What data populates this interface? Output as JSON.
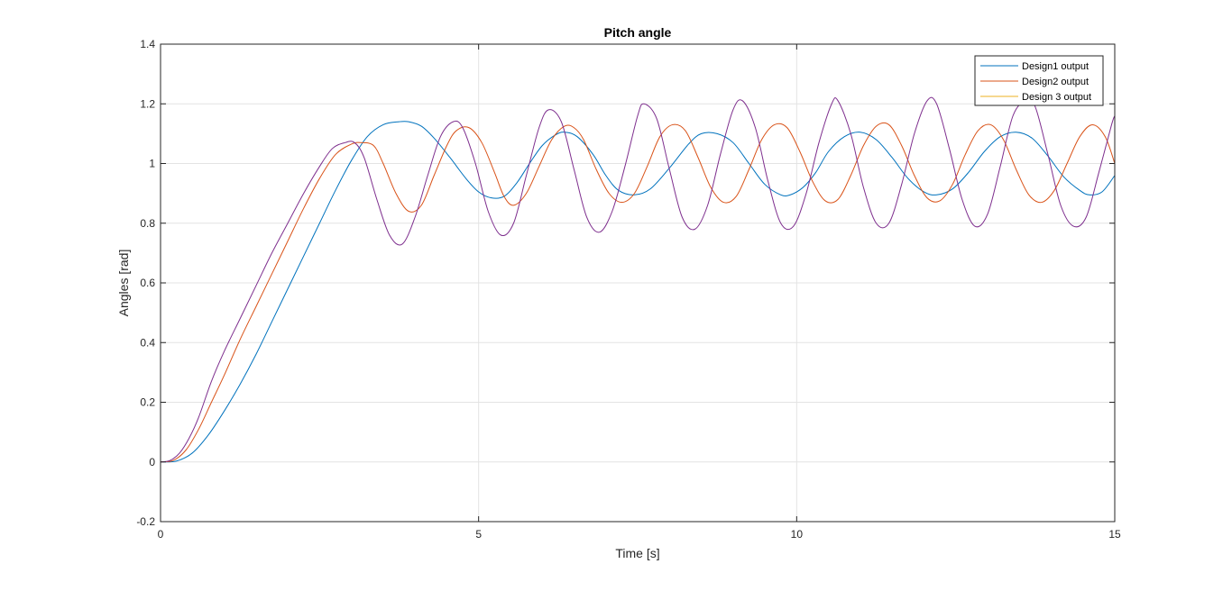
{
  "chart_data": {
    "type": "line",
    "title": "Pitch angle",
    "xlabel": "Time [s]",
    "ylabel": "Angles [rad]",
    "xlim": [
      0,
      15
    ],
    "ylim": [
      -0.2,
      1.4
    ],
    "xticks": [
      0,
      5,
      10,
      15
    ],
    "yticks": [
      -0.2,
      0,
      0.2,
      0.4,
      0.6,
      0.8,
      1,
      1.2,
      1.4
    ],
    "xtick_labels": [
      "0",
      "5",
      "10",
      "15"
    ],
    "ytick_labels": [
      "-0.2",
      "0",
      "0.2",
      "0.4",
      "0.6",
      "0.8",
      "1",
      "1.2",
      "1.4"
    ],
    "grid": true,
    "legend_position": "top-right",
    "series": [
      {
        "name": "Design1 output",
        "color": "#0072BD",
        "x": [
          0,
          0.25,
          0.5,
          0.75,
          1.0,
          1.25,
          1.5,
          1.75,
          2.0,
          2.25,
          2.5,
          2.75,
          3.0,
          3.25,
          3.5,
          3.75,
          3.9,
          4.1,
          4.3,
          4.55,
          4.8,
          5.0,
          5.2,
          5.4,
          5.6,
          5.8,
          6.0,
          6.2,
          6.35,
          6.55,
          6.8,
          7.0,
          7.2,
          7.45,
          7.7,
          8.0,
          8.3,
          8.5,
          8.75,
          9.0,
          9.25,
          9.5,
          9.75,
          9.9,
          10.1,
          10.3,
          10.5,
          10.75,
          11.0,
          11.25,
          11.5,
          11.75,
          12.0,
          12.2,
          12.45,
          12.7,
          12.95,
          13.2,
          13.45,
          13.7,
          13.95,
          14.2,
          14.45,
          14.6,
          14.8,
          15.0
        ],
        "y": [
          0.0,
          0.003,
          0.03,
          0.09,
          0.17,
          0.26,
          0.36,
          0.47,
          0.58,
          0.69,
          0.8,
          0.91,
          1.01,
          1.09,
          1.13,
          1.14,
          1.14,
          1.125,
          1.085,
          1.02,
          0.95,
          0.905,
          0.885,
          0.89,
          0.935,
          1.0,
          1.06,
          1.095,
          1.105,
          1.09,
          1.03,
          0.96,
          0.91,
          0.895,
          0.915,
          0.985,
          1.065,
          1.1,
          1.1,
          1.07,
          1.0,
          0.93,
          0.895,
          0.895,
          0.92,
          0.97,
          1.04,
          1.09,
          1.105,
          1.08,
          1.02,
          0.95,
          0.905,
          0.895,
          0.915,
          0.97,
          1.04,
          1.09,
          1.105,
          1.085,
          1.025,
          0.955,
          0.91,
          0.895,
          0.905,
          0.96
        ]
      },
      {
        "name": "Design2 output",
        "color": "#D95319",
        "x": [
          0,
          0.2,
          0.4,
          0.6,
          0.8,
          1.0,
          1.25,
          1.5,
          1.75,
          2.0,
          2.25,
          2.5,
          2.75,
          3.0,
          3.15,
          3.35,
          3.5,
          3.7,
          3.9,
          4.1,
          4.3,
          4.5,
          4.65,
          4.85,
          5.05,
          5.25,
          5.4,
          5.55,
          5.75,
          5.95,
          6.15,
          6.35,
          6.5,
          6.65,
          6.85,
          7.05,
          7.25,
          7.45,
          7.65,
          7.85,
          8.05,
          8.25,
          8.45,
          8.65,
          8.85,
          9.05,
          9.25,
          9.45,
          9.65,
          9.85,
          10.05,
          10.25,
          10.45,
          10.65,
          10.85,
          11.05,
          11.25,
          11.45,
          11.65,
          11.85,
          12.05,
          12.25,
          12.45,
          12.65,
          12.85,
          13.05,
          13.25,
          13.45,
          13.65,
          13.85,
          14.05,
          14.25,
          14.45,
          14.65,
          14.85,
          15.0
        ],
        "y": [
          0.0,
          0.005,
          0.04,
          0.11,
          0.2,
          0.29,
          0.41,
          0.52,
          0.63,
          0.74,
          0.85,
          0.95,
          1.03,
          1.065,
          1.07,
          1.06,
          1.0,
          0.9,
          0.84,
          0.86,
          0.96,
          1.06,
          1.11,
          1.12,
          1.07,
          0.97,
          0.89,
          0.86,
          0.9,
          0.99,
          1.08,
          1.125,
          1.12,
          1.08,
          0.98,
          0.9,
          0.87,
          0.9,
          0.99,
          1.09,
          1.13,
          1.11,
          1.02,
          0.92,
          0.87,
          0.89,
          0.98,
          1.08,
          1.13,
          1.12,
          1.04,
          0.94,
          0.875,
          0.88,
          0.96,
          1.06,
          1.125,
          1.13,
          1.06,
          0.96,
          0.885,
          0.875,
          0.93,
          1.03,
          1.11,
          1.13,
          1.08,
          0.98,
          0.895,
          0.87,
          0.91,
          1.0,
          1.09,
          1.13,
          1.09,
          1.0
        ]
      },
      {
        "name": "Design 3 output",
        "color": "#EDB120",
        "x": [],
        "y": []
      },
      {
        "name": "",
        "color": "#7E2F8E",
        "x": [
          0,
          0.15,
          0.3,
          0.45,
          0.6,
          0.8,
          1.0,
          1.25,
          1.5,
          1.75,
          2.0,
          2.25,
          2.5,
          2.7,
          2.9,
          3.05,
          3.2,
          3.4,
          3.6,
          3.8,
          4.0,
          4.2,
          4.4,
          4.6,
          4.75,
          4.95,
          5.15,
          5.35,
          5.55,
          5.75,
          5.95,
          6.1,
          6.3,
          6.5,
          6.7,
          6.9,
          7.1,
          7.3,
          7.5,
          7.6,
          7.8,
          8.0,
          8.2,
          8.4,
          8.6,
          8.8,
          9.0,
          9.15,
          9.35,
          9.55,
          9.75,
          9.95,
          10.15,
          10.35,
          10.55,
          10.65,
          10.85,
          11.05,
          11.25,
          11.45,
          11.65,
          11.85,
          12.05,
          12.2,
          12.4,
          12.6,
          12.8,
          13.0,
          13.2,
          13.4,
          13.6,
          13.75,
          13.95,
          14.15,
          14.35,
          14.55,
          14.75,
          14.95,
          15.0
        ],
        "y": [
          0.0,
          0.005,
          0.03,
          0.08,
          0.15,
          0.27,
          0.37,
          0.48,
          0.59,
          0.7,
          0.8,
          0.9,
          0.99,
          1.05,
          1.07,
          1.07,
          1.02,
          0.88,
          0.76,
          0.73,
          0.82,
          0.96,
          1.09,
          1.14,
          1.12,
          1.0,
          0.84,
          0.76,
          0.8,
          0.96,
          1.12,
          1.18,
          1.14,
          0.98,
          0.82,
          0.77,
          0.84,
          0.99,
          1.16,
          1.2,
          1.15,
          0.98,
          0.82,
          0.78,
          0.86,
          1.03,
          1.18,
          1.21,
          1.12,
          0.94,
          0.8,
          0.79,
          0.9,
          1.07,
          1.2,
          1.21,
          1.1,
          0.92,
          0.8,
          0.8,
          0.93,
          1.1,
          1.21,
          1.2,
          1.05,
          0.88,
          0.79,
          0.83,
          0.99,
          1.16,
          1.21,
          1.19,
          1.03,
          0.86,
          0.79,
          0.82,
          0.97,
          1.13,
          1.16
        ]
      }
    ]
  }
}
